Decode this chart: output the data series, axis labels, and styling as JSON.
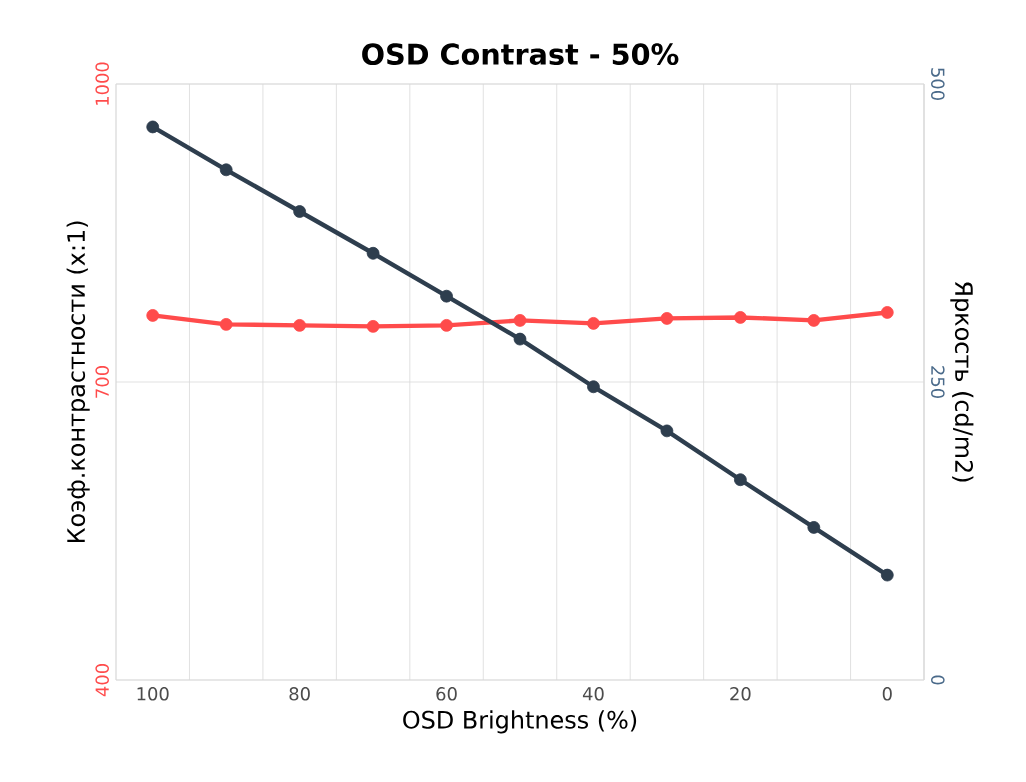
{
  "chart_data": {
    "type": "line",
    "title": "OSD Contrast - 50%",
    "xlabel": "OSD Brightness (%)",
    "ylabel": "Коэф.контрастности (x:1)",
    "y2label": "Яркость (cd/m2)",
    "categories": [
      "100",
      null,
      "80",
      null,
      "60",
      null,
      "40",
      null,
      "20",
      null,
      "0"
    ],
    "series": [
      {
        "color": "#ff4b4b",
        "values": [
          767,
          758,
          757,
          756,
          757,
          762,
          759,
          764,
          765,
          762,
          770
        ]
      },
      {
        "color": "#2e3e4e",
        "axis": "y2",
        "values": [
          464,
          428,
          393,
          358,
          322,
          286,
          246,
          209,
          168,
          128,
          88
        ]
      }
    ],
    "ylim": [
      400,
      1000
    ],
    "yticks": [
      400,
      700,
      1000
    ],
    "y2lim": [
      0,
      500
    ],
    "y2ticks": [
      0,
      250,
      500
    ],
    "grid": true,
    "marker": "circle",
    "line_style": "solid"
  }
}
